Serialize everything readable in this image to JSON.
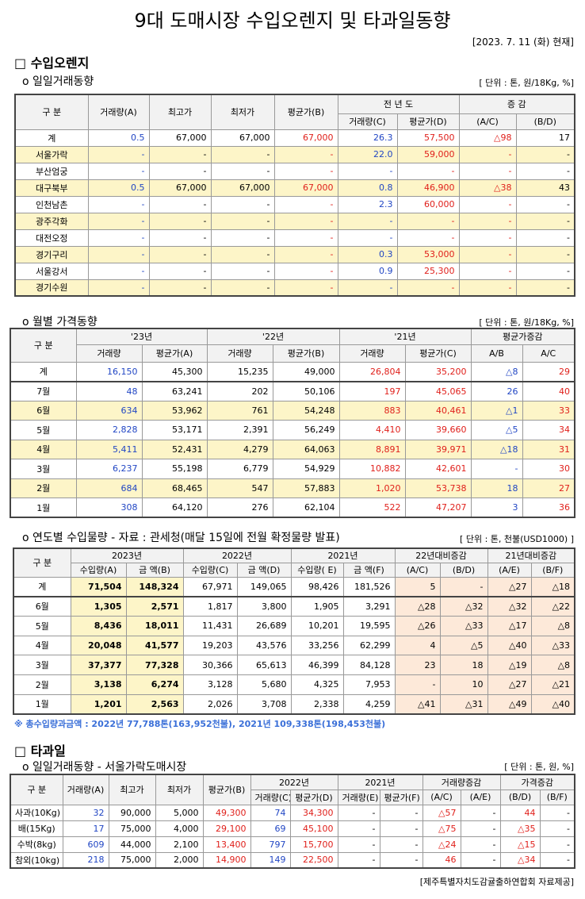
{
  "header": {
    "title": "9대 도매시장 수입오렌지 및 타과일동향",
    "date": "[2023. 7. 11 (화) 현재]"
  },
  "section1": {
    "title": "□ 수입오렌지",
    "daily": {
      "title": "o 일일거래동향",
      "unit": "[ 단위 : 톤, 원/18Kg, %]",
      "header": [
        [
          "구 분",
          "거래량(A)",
          "최고가",
          "최저가",
          "평균가(B)",
          "전 년 도",
          "증 감"
        ],
        [
          "거래량(C)",
          "평균가(D)",
          "(A/C)",
          "(B/D)"
        ]
      ],
      "rows": [
        [
          "계",
          "0.5",
          "67,000",
          "67,000",
          "67,000",
          "26.3",
          "57,500",
          "△98",
          "17"
        ],
        [
          "서울가락",
          "-",
          "-",
          "-",
          "-",
          "22.0",
          "59,000",
          "-",
          "-"
        ],
        [
          "부산엄궁",
          "-",
          "-",
          "-",
          "-",
          "-",
          "-",
          "-",
          "-"
        ],
        [
          "대구북부",
          "0.5",
          "67,000",
          "67,000",
          "67,000",
          "0.8",
          "46,900",
          "△38",
          "43"
        ],
        [
          "인천남촌",
          "-",
          "-",
          "-",
          "-",
          "2.3",
          "60,000",
          "-",
          "-"
        ],
        [
          "광주각화",
          "-",
          "-",
          "-",
          "-",
          "-",
          "-",
          "-",
          "-"
        ],
        [
          "대전오정",
          "-",
          "-",
          "-",
          "-",
          "-",
          "-",
          "-",
          "-"
        ],
        [
          "경기구리",
          "-",
          "-",
          "-",
          "-",
          "0.3",
          "53,000",
          "-",
          "-"
        ],
        [
          "서울강서",
          "-",
          "-",
          "-",
          "-",
          "0.9",
          "25,300",
          "-",
          "-"
        ],
        [
          "경기수원",
          "-",
          "-",
          "-",
          "-",
          "-",
          "-",
          "-",
          "-"
        ]
      ]
    },
    "monthly": {
      "title": "o 월별 가격동향",
      "unit": "[ 단위 : 톤, 원/18Kg, %]",
      "header": [
        [
          "구 분",
          "'23년",
          "'22년",
          "'21년",
          "평균가증감"
        ],
        [
          "거래량",
          "평균가(A)",
          "거래량",
          "평균가(B)",
          "거래량",
          "평균가(C)",
          "A/B",
          "A/C"
        ]
      ],
      "rows": [
        [
          "계",
          "16,150",
          "45,300",
          "15,235",
          "49,000",
          "26,804",
          "35,200",
          "△8",
          "29"
        ],
        [
          "7월",
          "48",
          "63,241",
          "202",
          "50,106",
          "197",
          "45,065",
          "26",
          "40"
        ],
        [
          "6월",
          "634",
          "53,962",
          "761",
          "54,248",
          "883",
          "40,461",
          "△1",
          "33"
        ],
        [
          "5월",
          "2,828",
          "53,171",
          "2,391",
          "56,249",
          "4,410",
          "39,660",
          "△5",
          "34"
        ],
        [
          "4월",
          "5,411",
          "52,431",
          "4,279",
          "64,063",
          "8,891",
          "39,971",
          "△18",
          "31"
        ],
        [
          "3월",
          "6,237",
          "55,198",
          "6,779",
          "54,929",
          "10,882",
          "42,601",
          "-",
          "30"
        ],
        [
          "2월",
          "684",
          "68,465",
          "547",
          "57,883",
          "1,020",
          "53,738",
          "18",
          "27"
        ],
        [
          "1월",
          "308",
          "64,120",
          "276",
          "62,104",
          "522",
          "47,207",
          "3",
          "36"
        ]
      ]
    },
    "yearly": {
      "title": "o 연도별 수입물량 - 자료 : 관세청(매달 15일에 전월 확정물량 발표)",
      "unit": "[ 단위 : 톤, 천불(USD1000) ]",
      "header": [
        [
          "구 분",
          "2023년",
          "2022년",
          "2021년",
          "22년대비증감",
          "21년대비증감"
        ],
        [
          "수입량(A)",
          "금 액(B)",
          "수입량(C)",
          "금 액(D)",
          "수입량( E)",
          "금 액(F)",
          "(A/C)",
          "(B/D)",
          "(A/E)",
          "(B/F)"
        ]
      ],
      "rows": [
        [
          "계",
          "71,504",
          "148,324",
          "67,971",
          "149,065",
          "98,426",
          "181,526",
          "5",
          "-",
          "△27",
          "△18"
        ],
        [
          "6월",
          "1,305",
          "2,571",
          "1,817",
          "3,800",
          "1,905",
          "3,291",
          "△28",
          "△32",
          "△32",
          "△22"
        ],
        [
          "5월",
          "8,436",
          "18,011",
          "11,431",
          "26,689",
          "10,201",
          "19,595",
          "△26",
          "△33",
          "△17",
          "△8"
        ],
        [
          "4월",
          "20,048",
          "41,577",
          "19,203",
          "43,576",
          "33,256",
          "62,299",
          "4",
          "△5",
          "△40",
          "△33"
        ],
        [
          "3월",
          "37,377",
          "77,328",
          "30,366",
          "65,613",
          "46,399",
          "84,128",
          "23",
          "18",
          "△19",
          "△8"
        ],
        [
          "2월",
          "3,138",
          "6,274",
          "3,128",
          "5,680",
          "4,325",
          "7,953",
          "-",
          "10",
          "△27",
          "△21"
        ],
        [
          "1월",
          "1,201",
          "2,563",
          "2,026",
          "3,708",
          "2,338",
          "4,259",
          "△41",
          "△31",
          "△49",
          "△40"
        ]
      ]
    },
    "note": "※ 총수입량과금액 : 2022년 77,788톤(163,952천불), 2021년 109,338톤(198,453천불)"
  },
  "section2": {
    "title": "□ 타과일",
    "daily": {
      "title": "o 일일거래동향 - 서울가락도매시장",
      "unit": "[ 단위 : 톤, 원, %]",
      "header": [
        [
          "구 분",
          "거래량(A)",
          "최고가",
          "최저가",
          "평균가(B)",
          "2022년",
          "2021년",
          "거래량증감",
          "가격증감"
        ],
        [
          "거래량(C)",
          "평균가(D)",
          "거래량(E)",
          "평균가(F)",
          "(A/C)",
          "(A/E)",
          "(B/D)",
          "(B/F)"
        ]
      ],
      "rows": [
        [
          "사과(10Kg)",
          "32",
          "90,000",
          "5,000",
          "49,300",
          "74",
          "34,300",
          "-",
          "-",
          "△57",
          "-",
          "44",
          "-"
        ],
        [
          "배(15Kg)",
          "17",
          "75,000",
          "4,000",
          "29,100",
          "69",
          "45,100",
          "-",
          "-",
          "△75",
          "-",
          "△35",
          "-"
        ],
        [
          "수박(8kg)",
          "609",
          "44,000",
          "2,100",
          "13,400",
          "797",
          "15,700",
          "-",
          "-",
          "△24",
          "-",
          "△15",
          "-"
        ],
        [
          "참외(10kg)",
          "218",
          "75,000",
          "2,000",
          "14,900",
          "149",
          "22,500",
          "-",
          "-",
          "46",
          "-",
          "△34",
          "-"
        ]
      ]
    }
  },
  "footer": {
    "source": "[제주특별자치도감귤출하연합회 자료제공]"
  }
}
